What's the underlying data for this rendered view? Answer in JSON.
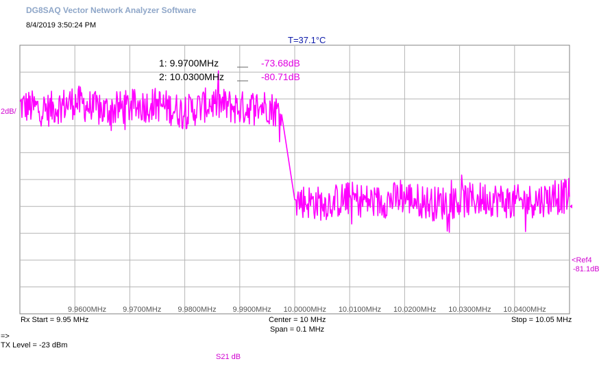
{
  "app_title": "DG8SAQ Vector Network Analyzer Software",
  "timestamp": "8/4/2019   3:50:24 PM",
  "temperature": "T=37.1°C",
  "y_scale_label": "2dB/",
  "markers": [
    {
      "label": "1:   9.9700MHz",
      "value": "-73.68dB"
    },
    {
      "label": "2:  10.0300MHz",
      "value": "-80.71dB"
    }
  ],
  "ref": {
    "label": "Ref4",
    "value": "-81.1dB"
  },
  "footer": {
    "rx_start": "Rx Start = 9.95 MHz",
    "center": "Center = 10 MHz",
    "span": "Span = 0.1 MHz",
    "stop": "Stop = 10.05 MHz",
    "arrow": "=>",
    "tx_level": "TX Level = -23 dBm",
    "trace": "S21  dB"
  },
  "colors": {
    "trace": "#ff00ff",
    "grid": "#b4b4b4",
    "frame": "#808080",
    "temperature": "#0a18a8"
  },
  "chart_data": {
    "type": "line",
    "x_unit": "MHz",
    "y_unit": "dB",
    "xlim": [
      9.95,
      10.05
    ],
    "ylim": [
      -89.1,
      -69.1
    ],
    "y_per_div": 2,
    "grid": true,
    "x_tick_labels": [
      "9.9600MHz",
      "9.9700MHz",
      "9.9800MHz",
      "9.9900MHz",
      "10.0000MHz",
      "10.0100MHz",
      "10.0200MHz",
      "10.0300MHz",
      "10.0400MHz"
    ],
    "x_ticks": [
      9.96,
      9.97,
      9.98,
      9.99,
      10.0,
      10.01,
      10.02,
      10.03,
      10.04
    ],
    "series": [
      {
        "x": [
          9.95,
          9.955,
          9.96,
          9.965,
          9.97,
          9.975,
          9.98,
          9.985,
          9.99,
          9.995,
          9.9976,
          10.0,
          10.005,
          10.01,
          10.015,
          10.02,
          10.025,
          10.03,
          10.035,
          10.04,
          10.045,
          10.05
        ],
        "y": [
          -73.6,
          -73.9,
          -73.3,
          -74.0,
          -73.68,
          -73.5,
          -74.1,
          -73.4,
          -73.8,
          -73.6,
          -74.2,
          -80.6,
          -80.9,
          -80.5,
          -80.8,
          -80.4,
          -80.9,
          -80.71,
          -80.5,
          -80.8,
          -80.6,
          -80.3
        ]
      }
    ]
  }
}
